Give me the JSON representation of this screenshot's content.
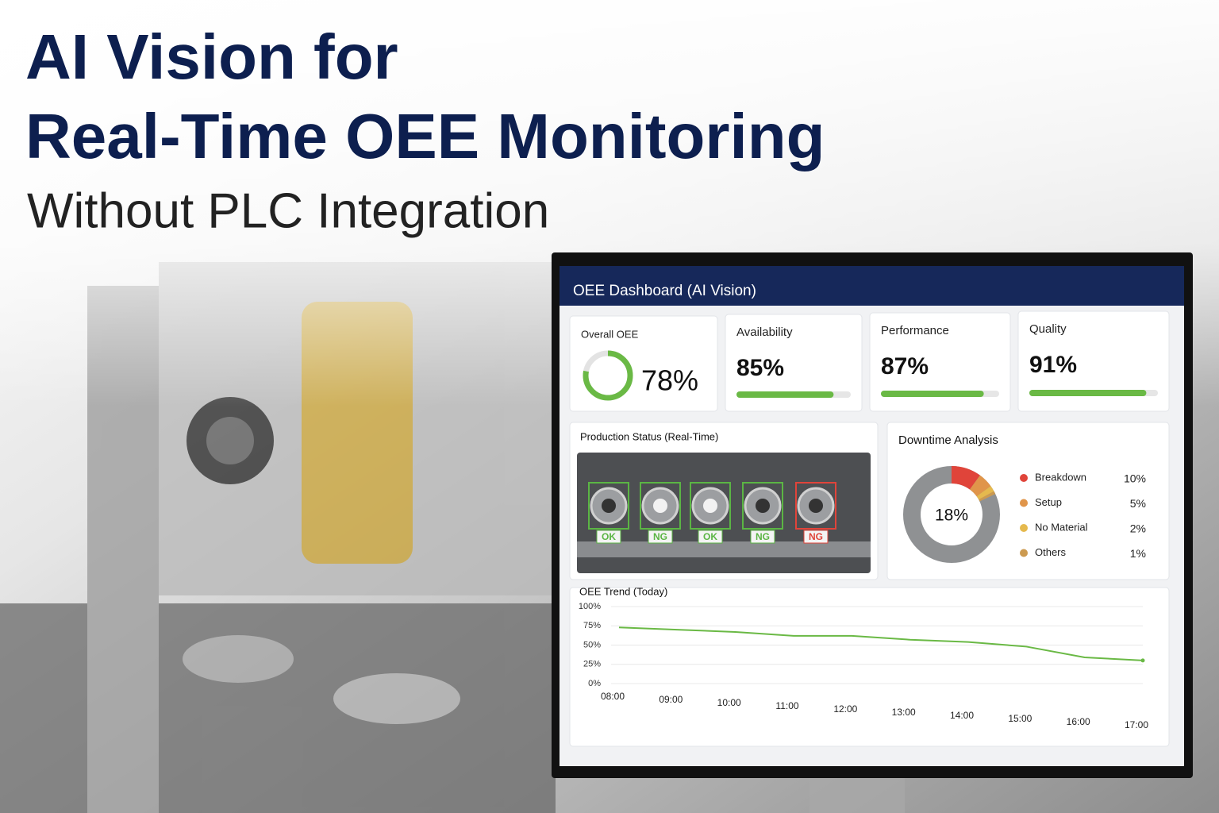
{
  "header": {
    "title_lines": [
      "AI Vision for",
      "Real-Time OEE Monitoring"
    ],
    "subtitle": "Without PLC Integration"
  },
  "dashboard": {
    "title": "OEE Dashboard (AI Vision)",
    "overall": {
      "label": "Overall OEE",
      "value": 78,
      "value_label": "78%",
      "color": "#6ab945"
    },
    "kpis": [
      {
        "label": "Availability",
        "value": 85,
        "value_label": "85%",
        "color": "#6ab945"
      },
      {
        "label": "Performance",
        "value": 87,
        "value_label": "87%",
        "color": "#6ab945"
      },
      {
        "label": "Quality",
        "value": 91,
        "value_label": "91%",
        "color": "#6ab945"
      }
    ],
    "production": {
      "title": "Production Status (Real-Time)",
      "items": [
        {
          "label": "OK",
          "color": "#5bb544"
        },
        {
          "label": "NG",
          "color": "#5bb544"
        },
        {
          "label": "OK",
          "color": "#5bb544"
        },
        {
          "label": "NG",
          "color": "#5bb544"
        },
        {
          "label": "NG",
          "color": "#e0443a"
        }
      ]
    },
    "downtime": {
      "title": "Downtime Analysis",
      "total": 18,
      "total_label": "18%",
      "categories": [
        "Breakdown",
        "Setup",
        "No Material",
        "Others"
      ],
      "values": [
        10,
        5,
        2,
        1
      ],
      "value_labels": [
        "10%",
        "5%",
        "2%",
        "1%"
      ],
      "colors": [
        "#e0443a",
        "#e0954a",
        "#e5b94e",
        "#cc9a50"
      ]
    },
    "trend": {
      "type": "line",
      "title": "OEE Trend (Today)",
      "x": [
        "08:00",
        "09:00",
        "10:00",
        "11:00",
        "12:00",
        "13:00",
        "14:00",
        "15:00",
        "16:00",
        "17:00"
      ],
      "values": [
        73,
        70,
        67,
        62,
        62,
        57,
        54,
        48,
        34,
        30
      ],
      "color": "#6ab945",
      "ylim": [
        0,
        100
      ],
      "yticks": [
        {
          "value": 0,
          "label": "0%"
        },
        {
          "value": 25,
          "label": "25%"
        },
        {
          "value": 50,
          "label": "50%"
        },
        {
          "value": 75,
          "label": "75%"
        },
        {
          "value": 100,
          "label": "100%"
        }
      ],
      "grid": true
    }
  }
}
